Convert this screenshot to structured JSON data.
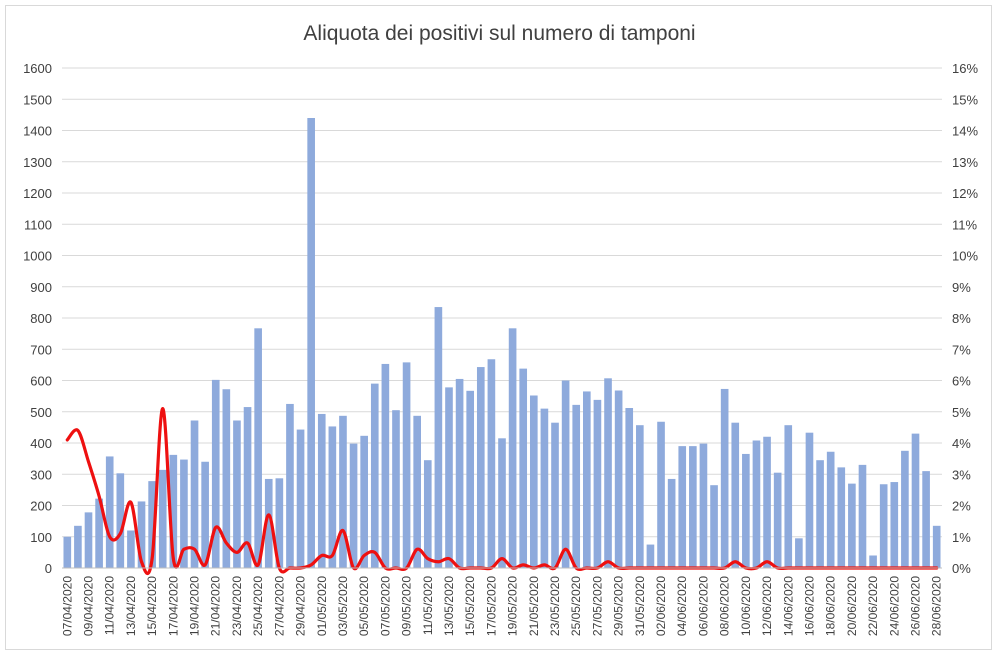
{
  "chart_data": {
    "type": "bar",
    "title": "Aliquota dei positivi sul numero di tamponi",
    "xlabel": "",
    "ylabel": "",
    "ylim": [
      0,
      1600
    ],
    "y2lim": [
      0,
      0.16
    ],
    "y_ticks": [
      "0",
      "100",
      "200",
      "300",
      "400",
      "500",
      "600",
      "700",
      "800",
      "900",
      "1000",
      "1100",
      "1200",
      "1300",
      "1400",
      "1500",
      "1600"
    ],
    "y2_ticks": [
      "0%",
      "1%",
      "2%",
      "3%",
      "4%",
      "5%",
      "6%",
      "7%",
      "8%",
      "9%",
      "10%",
      "11%",
      "12%",
      "13%",
      "14%",
      "15%",
      "16%"
    ],
    "x_tick_labels": [
      "07/04/2020",
      "09/04/2020",
      "11/04/2020",
      "13/04/2020",
      "15/04/2020",
      "17/04/2020",
      "19/04/2020",
      "21/04/2020",
      "23/04/2020",
      "25/04/2020",
      "27/04/2020",
      "29/04/2020",
      "01/05/2020",
      "03/05/2020",
      "05/05/2020",
      "07/05/2020",
      "09/05/2020",
      "11/05/2020",
      "13/05/2020",
      "15/05/2020",
      "17/05/2020",
      "19/05/2020",
      "21/05/2020",
      "23/05/2020",
      "25/05/2020",
      "27/05/2020",
      "29/05/2020",
      "31/05/2020",
      "02/06/2020",
      "04/06/2020",
      "06/06/2020",
      "08/06/2020",
      "10/06/2020",
      "12/06/2020",
      "14/06/2020",
      "16/06/2020",
      "18/06/2020",
      "20/06/2020",
      "22/06/2020",
      "24/06/2020",
      "26/06/2020",
      "28/06/2020"
    ],
    "grid": true,
    "colors": {
      "bars": "#8eaadc",
      "line": "#ee1010",
      "grid": "#d9d9d9",
      "text": "#404040"
    },
    "series": [
      {
        "type": "bar",
        "axis": "left",
        "values": [
          100,
          135,
          178,
          222,
          357,
          303,
          120,
          213,
          278,
          314,
          362,
          347,
          472,
          340,
          602,
          572,
          472,
          515,
          767,
          285,
          287,
          525,
          443,
          1440,
          493,
          453,
          487,
          398,
          423,
          590,
          653,
          505,
          658,
          487,
          345,
          835,
          578,
          605,
          567,
          643,
          668,
          415,
          767,
          638,
          552,
          510,
          465,
          600,
          522,
          565,
          538,
          607,
          568,
          512,
          457,
          75,
          468,
          285,
          390,
          390,
          398,
          265,
          573,
          465,
          365,
          408,
          420,
          305,
          457,
          95,
          433,
          345,
          372,
          322,
          270,
          330,
          40,
          268,
          275,
          375,
          430,
          310,
          135
        ]
      },
      {
        "type": "line",
        "axis": "right",
        "values": [
          0.041,
          0.044,
          0.034,
          0.023,
          0.01,
          0.011,
          0.021,
          0.002,
          0.003,
          0.051,
          0.003,
          0.006,
          0.006,
          0.001,
          0.013,
          0.008,
          0.005,
          0.008,
          0.001,
          0.017,
          0,
          0,
          0,
          0.001,
          0.004,
          0.004,
          0.012,
          0,
          0.004,
          0.005,
          0,
          0,
          0,
          0.006,
          0.003,
          0.002,
          0.003,
          0,
          0,
          0,
          0,
          0.003,
          0,
          0.001,
          0,
          0.001,
          0,
          0.006,
          0,
          0,
          0,
          0.002,
          0,
          0,
          0,
          0,
          0,
          0,
          0,
          0,
          0,
          0,
          0,
          0.002,
          0,
          0,
          0.002,
          0,
          0,
          0,
          0,
          0,
          0,
          0,
          0,
          0,
          0,
          0,
          0,
          0,
          0,
          0,
          0
        ]
      }
    ]
  }
}
